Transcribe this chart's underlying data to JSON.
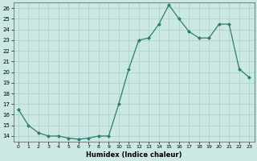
{
  "x": [
    0,
    1,
    2,
    3,
    4,
    5,
    6,
    7,
    8,
    9,
    10,
    11,
    12,
    13,
    14,
    15,
    16,
    17,
    18,
    19,
    20,
    21,
    22,
    23
  ],
  "y": [
    16.5,
    15.0,
    14.3,
    14.0,
    14.0,
    13.8,
    13.7,
    13.8,
    14.0,
    14.0,
    17.0,
    20.3,
    23.0,
    23.2,
    24.5,
    26.3,
    25.0,
    23.8,
    23.2,
    23.2,
    24.5,
    24.5,
    20.3,
    19.5
  ],
  "xlabel": "Humidex (Indice chaleur)",
  "xlim": [
    -0.5,
    23.5
  ],
  "ylim": [
    13.5,
    26.5
  ],
  "yticks": [
    14,
    15,
    16,
    17,
    18,
    19,
    20,
    21,
    22,
    23,
    24,
    25,
    26
  ],
  "xticks": [
    0,
    1,
    2,
    3,
    4,
    5,
    6,
    7,
    8,
    9,
    10,
    11,
    12,
    13,
    14,
    15,
    16,
    17,
    18,
    19,
    20,
    21,
    22,
    23
  ],
  "line_color": "#2e7d6e",
  "marker_color": "#2e7d6e",
  "bg_color": "#cce8e4",
  "grid_color": "#aacfcb"
}
